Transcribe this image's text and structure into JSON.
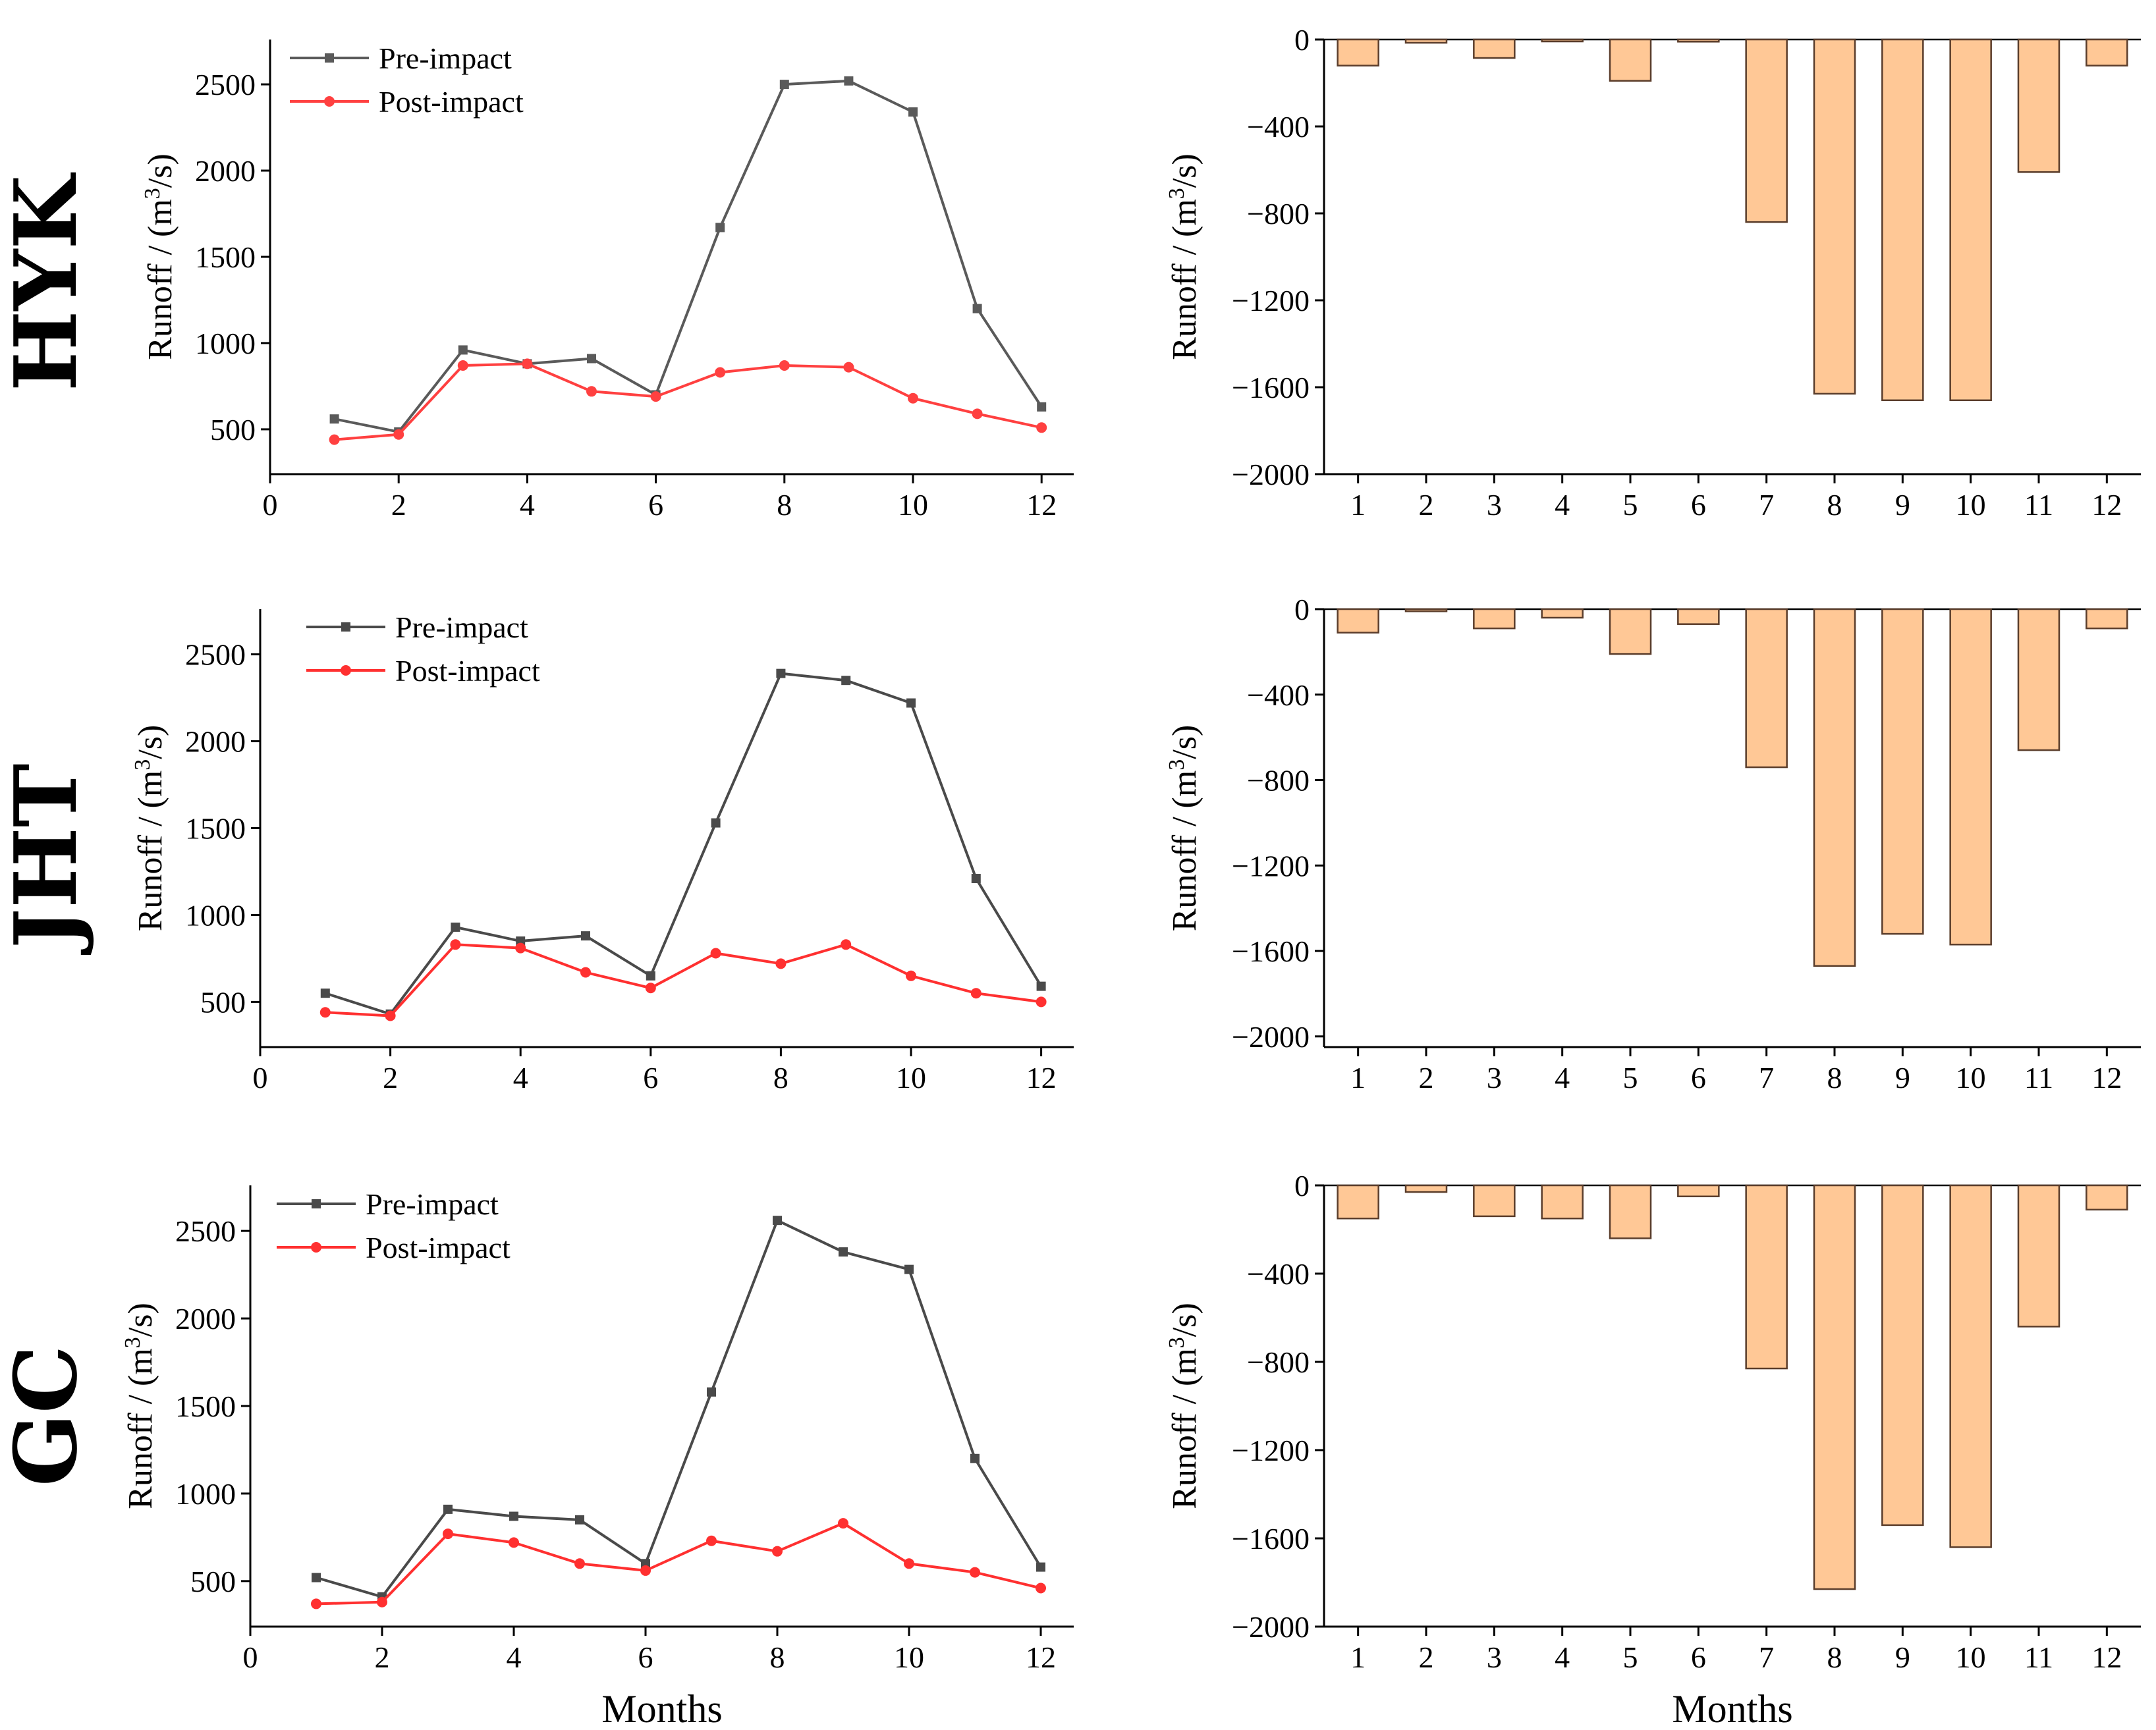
{
  "chart_data": [
    {
      "id": "hyk-line",
      "type": "line",
      "row_label": "HYK",
      "ylabel_main": "Runoff / (m",
      "ylabel_sup": "3",
      "ylabel_end": "/s)",
      "xlabel": "",
      "x": [
        1,
        2,
        3,
        4,
        5,
        6,
        7,
        8,
        9,
        10,
        11,
        12
      ],
      "xlim": [
        0,
        12.5
      ],
      "xticks": [
        0,
        2,
        4,
        6,
        8,
        10,
        12
      ],
      "ylim": [
        240,
        2760
      ],
      "yticks": [
        500,
        1000,
        1500,
        2000,
        2500
      ],
      "series": [
        {
          "name": "Pre-impact",
          "color": "#5a5a5a",
          "marker": "square",
          "values": [
            560,
            485,
            960,
            880,
            910,
            700,
            1670,
            2500,
            2520,
            2340,
            1200,
            630
          ]
        },
        {
          "name": "Post-impact",
          "color": "#ff4040",
          "marker": "circle",
          "values": [
            440,
            470,
            870,
            880,
            720,
            690,
            830,
            870,
            860,
            680,
            590,
            510
          ]
        }
      ]
    },
    {
      "id": "hyk-bar",
      "type": "bar",
      "ylabel_main": "Runoff / (m",
      "ylabel_sup": "3",
      "ylabel_end": "/s)",
      "xlabel": "",
      "categories": [
        "1",
        "2",
        "3",
        "4",
        "5",
        "6",
        "7",
        "8",
        "9",
        "10",
        "11",
        "12"
      ],
      "values": [
        -120,
        -15,
        -85,
        0,
        -190,
        -10,
        -840,
        -1630,
        -1660,
        -1660,
        -610,
        -120
      ],
      "ylim": [
        -2000,
        0
      ],
      "yticks": [
        0,
        -400,
        -800,
        -1200,
        -1600,
        -2000
      ],
      "ytick_labels": [
        "0",
        "-400",
        "-800",
        "-1200",
        "-1600",
        "-2000"
      ],
      "color": "#ffc896"
    },
    {
      "id": "jht-line",
      "type": "line",
      "row_label": "JHT",
      "ylabel_main": "Runoff / (m",
      "ylabel_sup": "3",
      "ylabel_end": "/s)",
      "xlabel": "",
      "x": [
        1,
        2,
        3,
        4,
        5,
        6,
        7,
        8,
        9,
        10,
        11,
        12
      ],
      "xlim": [
        0,
        12.5
      ],
      "xticks": [
        0,
        2,
        4,
        6,
        8,
        10,
        12
      ],
      "ylim": [
        240,
        2760
      ],
      "yticks": [
        500,
        1000,
        1500,
        2000,
        2500
      ],
      "series": [
        {
          "name": "Pre-impact",
          "color": "#4a4a4a",
          "marker": "square",
          "values": [
            550,
            430,
            930,
            850,
            880,
            650,
            1530,
            2390,
            2350,
            2220,
            1210,
            590
          ]
        },
        {
          "name": "Post-impact",
          "color": "#ff3030",
          "marker": "circle",
          "values": [
            440,
            420,
            830,
            810,
            670,
            580,
            780,
            720,
            830,
            650,
            550,
            500
          ]
        }
      ]
    },
    {
      "id": "jht-bar",
      "type": "bar",
      "ylabel_main": "Runoff / (m",
      "ylabel_sup": "3",
      "ylabel_end": "/s)",
      "xlabel": "",
      "categories": [
        "1",
        "2",
        "3",
        "4",
        "5",
        "6",
        "7",
        "8",
        "9",
        "10",
        "11",
        "12"
      ],
      "values": [
        -110,
        -10,
        -90,
        -40,
        -210,
        -70,
        -740,
        -1670,
        -1520,
        -1570,
        -660,
        -90
      ],
      "ylim": [
        -2050,
        0
      ],
      "yticks": [
        0,
        -400,
        -800,
        -1200,
        -1600,
        -2000
      ],
      "ytick_labels": [
        "0",
        "-400",
        "-800",
        "-1200",
        "-1600",
        "-2000"
      ],
      "color": "#ffc896"
    },
    {
      "id": "gc-line",
      "type": "line",
      "row_label": "GC",
      "ylabel_main": "Runoff / (m",
      "ylabel_sup": "3",
      "ylabel_end": "/s)",
      "xlabel": "Months",
      "x": [
        1,
        2,
        3,
        4,
        5,
        6,
        7,
        8,
        9,
        10,
        11,
        12
      ],
      "xlim": [
        0,
        12.5
      ],
      "xticks": [
        0,
        2,
        4,
        6,
        8,
        10,
        12
      ],
      "ylim": [
        240,
        2760
      ],
      "yticks": [
        500,
        1000,
        1500,
        2000,
        2500
      ],
      "series": [
        {
          "name": "Pre-impact",
          "color": "#4a4a4a",
          "marker": "square",
          "values": [
            520,
            410,
            910,
            870,
            850,
            600,
            1580,
            2560,
            2380,
            2280,
            1200,
            580
          ]
        },
        {
          "name": "Post-impact",
          "color": "#ff3030",
          "marker": "circle",
          "values": [
            370,
            380,
            770,
            720,
            600,
            560,
            730,
            670,
            830,
            600,
            550,
            460
          ]
        }
      ]
    },
    {
      "id": "gc-bar",
      "type": "bar",
      "ylabel_main": "Runoff / (m",
      "ylabel_sup": "3",
      "ylabel_end": "/s)",
      "xlabel": "Months",
      "categories": [
        "1",
        "2",
        "3",
        "4",
        "5",
        "6",
        "7",
        "8",
        "9",
        "10",
        "11",
        "12"
      ],
      "values": [
        -150,
        -30,
        -140,
        -150,
        -240,
        -50,
        -830,
        -1830,
        -1540,
        -1640,
        -640,
        -110
      ],
      "ylim": [
        -2000,
        0
      ],
      "yticks": [
        0,
        -400,
        -800,
        -1200,
        -1600,
        -2000
      ],
      "ytick_labels": [
        "0",
        "-400",
        "-800",
        "-1200",
        "-1600",
        "-2000"
      ],
      "color": "#ffc896"
    }
  ]
}
